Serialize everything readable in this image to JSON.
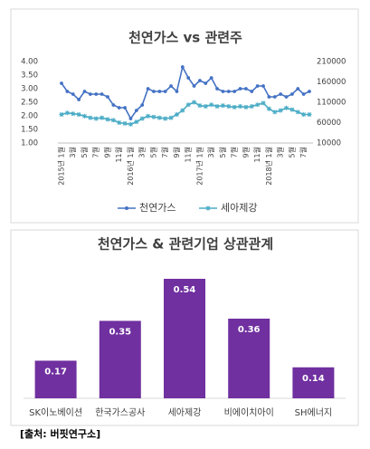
{
  "chart_data": [
    {
      "type": "line",
      "title": "천연가스 vs 관련주",
      "categories": [
        "2015년 1월",
        null,
        "3월",
        null,
        "5월",
        null,
        "7월",
        null,
        "9월",
        null,
        "11월",
        null,
        "2016년 1월",
        null,
        "3월",
        null,
        "5월",
        null,
        "7월",
        null,
        "9월",
        null,
        "11월",
        null,
        "2017년 1월",
        null,
        "3월",
        null,
        "5월",
        null,
        "7월",
        null,
        "9월",
        null,
        "11월",
        null,
        "2018년 1월",
        null,
        "3월",
        null,
        "5월",
        null,
        "7월",
        null
      ],
      "series": [
        {
          "name": "천연가스",
          "color": "#4472c4",
          "values": [
            3.2,
            2.9,
            2.8,
            2.6,
            2.9,
            2.8,
            2.8,
            2.8,
            2.7,
            2.4,
            2.3,
            2.3,
            1.9,
            2.2,
            2.4,
            3.0,
            2.9,
            2.9,
            2.9,
            3.1,
            2.9,
            3.8,
            3.4,
            3.1,
            3.3,
            3.2,
            3.4,
            3.0,
            2.9,
            2.9,
            2.9,
            3.0,
            3.0,
            2.9,
            3.1,
            3.1,
            2.7,
            2.7,
            2.8,
            2.7,
            2.8,
            3.0,
            2.8,
            2.9
          ]
        },
        {
          "name": "세아제강",
          "color": "#4bacc6",
          "axis": "y2",
          "values": [
            80000,
            84000,
            82000,
            80000,
            76000,
            72000,
            70000,
            72000,
            68000,
            66000,
            60000,
            58000,
            56000,
            62000,
            70000,
            76000,
            74000,
            72000,
            70000,
            72000,
            80000,
            90000,
            104000,
            110000,
            102000,
            100000,
            104000,
            100000,
            102000,
            100000,
            98000,
            100000,
            98000,
            100000,
            104000,
            108000,
            94000,
            86000,
            90000,
            96000,
            92000,
            86000,
            80000,
            80000
          ]
        }
      ],
      "ylim": [
        1,
        4
      ],
      "yticks": [
        {
          "value": 1,
          "label": "1.00"
        },
        {
          "value": 1.5,
          "label": "1.50"
        },
        {
          "value": 2,
          "label": "2.00"
        },
        {
          "value": 2.5,
          "label": "2.50"
        },
        {
          "value": 3,
          "label": "3.00"
        },
        {
          "value": 3.5,
          "label": "3.50"
        },
        {
          "value": 4,
          "label": "4.00"
        }
      ],
      "y2lim": [
        10000,
        210000
      ],
      "y2ticks": [
        10000,
        60000,
        110000,
        160000,
        210000
      ],
      "legend": "bottom"
    },
    {
      "type": "bar",
      "title": "천연가스 & 관련기업 상관관계",
      "categories": [
        "SK이노베이션",
        "한국가스공사",
        "세아제강",
        "비에이치아이",
        "SH에너지"
      ],
      "values": [
        0.17,
        0.35,
        0.54,
        0.36,
        0.14
      ],
      "color": "#7030a0"
    }
  ],
  "source": "[출처: 버핏연구소]"
}
